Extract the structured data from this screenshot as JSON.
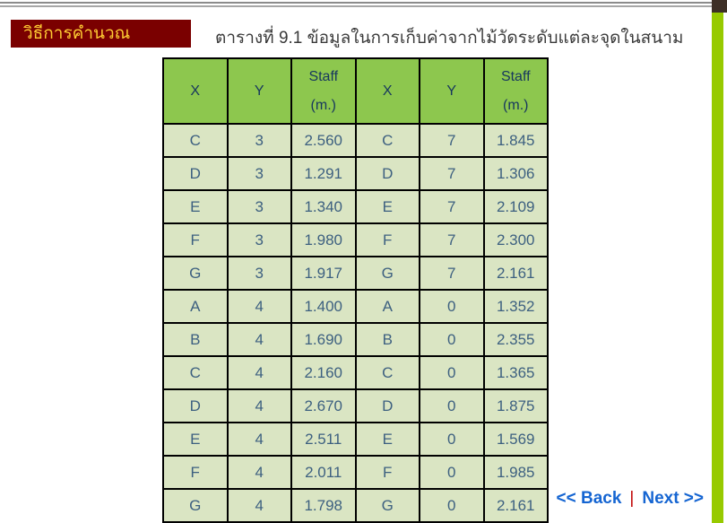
{
  "banner": {
    "label": "วิธีการคำนวณ"
  },
  "title": "ตารางที่ 9.1 ข้อมูลในการเก็บค่าจากไม้วัดระดับแต่ละจุดในสนาม",
  "table": {
    "headers": [
      "X",
      "Y",
      "Staff\n(m.)",
      "X",
      "Y",
      "Staff\n(m.)"
    ],
    "rows": [
      [
        "C",
        "3",
        "2.560",
        "C",
        "7",
        "1.845"
      ],
      [
        "D",
        "3",
        "1.291",
        "D",
        "7",
        "1.306"
      ],
      [
        "E",
        "3",
        "1.340",
        "E",
        "7",
        "2.109"
      ],
      [
        "F",
        "3",
        "1.980",
        "F",
        "7",
        "2.300"
      ],
      [
        "G",
        "3",
        "1.917",
        "G",
        "7",
        "2.161"
      ],
      [
        "A",
        "4",
        "1.400",
        "A",
        "0",
        "1.352"
      ],
      [
        "B",
        "4",
        "1.690",
        "B",
        "0",
        "2.355"
      ],
      [
        "C",
        "4",
        "2.160",
        "C",
        "0",
        "1.365"
      ],
      [
        "D",
        "4",
        "2.670",
        "D",
        "0",
        "1.875"
      ],
      [
        "E",
        "4",
        "2.511",
        "E",
        "0",
        "1.569"
      ],
      [
        "F",
        "4",
        "2.011",
        "F",
        "0",
        "1.985"
      ],
      [
        "G",
        "4",
        "1.798",
        "G",
        "0",
        "2.161"
      ]
    ]
  },
  "nav": {
    "back_label": "<< Back",
    "separator": "|",
    "next_label": "Next >>"
  },
  "colors": {
    "banner_maroon": "#7a0000",
    "banner_text": "#ffcc33",
    "header_green": "#8dc74e",
    "header_text": "#17375e",
    "cell_green": "#dae5c3",
    "cell_text": "#3d6080",
    "sidebar_green": "#97ca00",
    "corner_brown": "#3d2f26",
    "link_blue": "#1565d2",
    "separator_red": "#c00000"
  }
}
